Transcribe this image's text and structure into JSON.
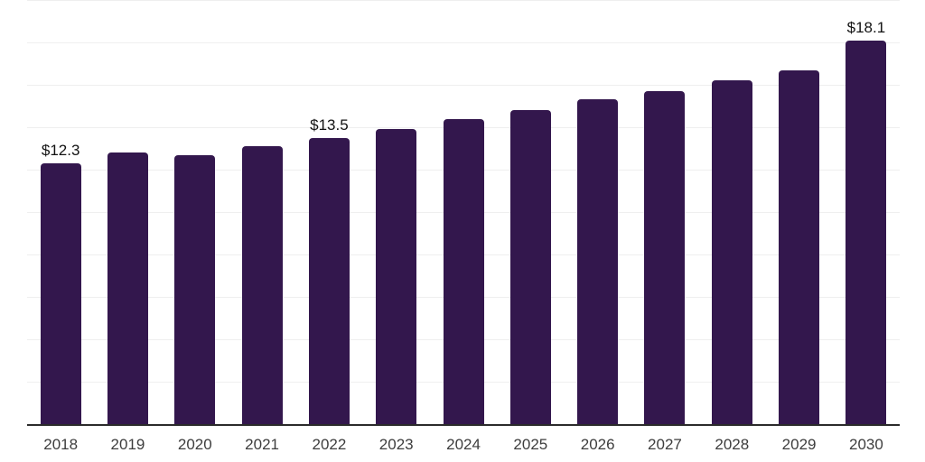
{
  "chart_data": {
    "type": "bar",
    "title": "",
    "xlabel": "",
    "ylabel": "",
    "categories": [
      "2018",
      "2019",
      "2020",
      "2021",
      "2022",
      "2023",
      "2024",
      "2025",
      "2026",
      "2027",
      "2028",
      "2029",
      "2030"
    ],
    "values": [
      12.3,
      12.8,
      12.7,
      13.1,
      13.5,
      13.9,
      14.4,
      14.8,
      15.3,
      15.7,
      16.2,
      16.7,
      18.1
    ],
    "bar_labels": [
      "$12.3",
      "",
      "",
      "",
      "$13.5",
      "",
      "",
      "",
      "",
      "",
      "",
      "",
      "$18.1"
    ],
    "ylim": [
      0,
      20
    ],
    "grid_step": 2,
    "grid": true,
    "legend": false,
    "bar_color": "#33174d",
    "grid_color": "#efefef",
    "axis_color": "#2b2b2b",
    "tick_label_color": "#3d3d3d",
    "value_label_color": "#121212",
    "background": "#ffffff"
  }
}
